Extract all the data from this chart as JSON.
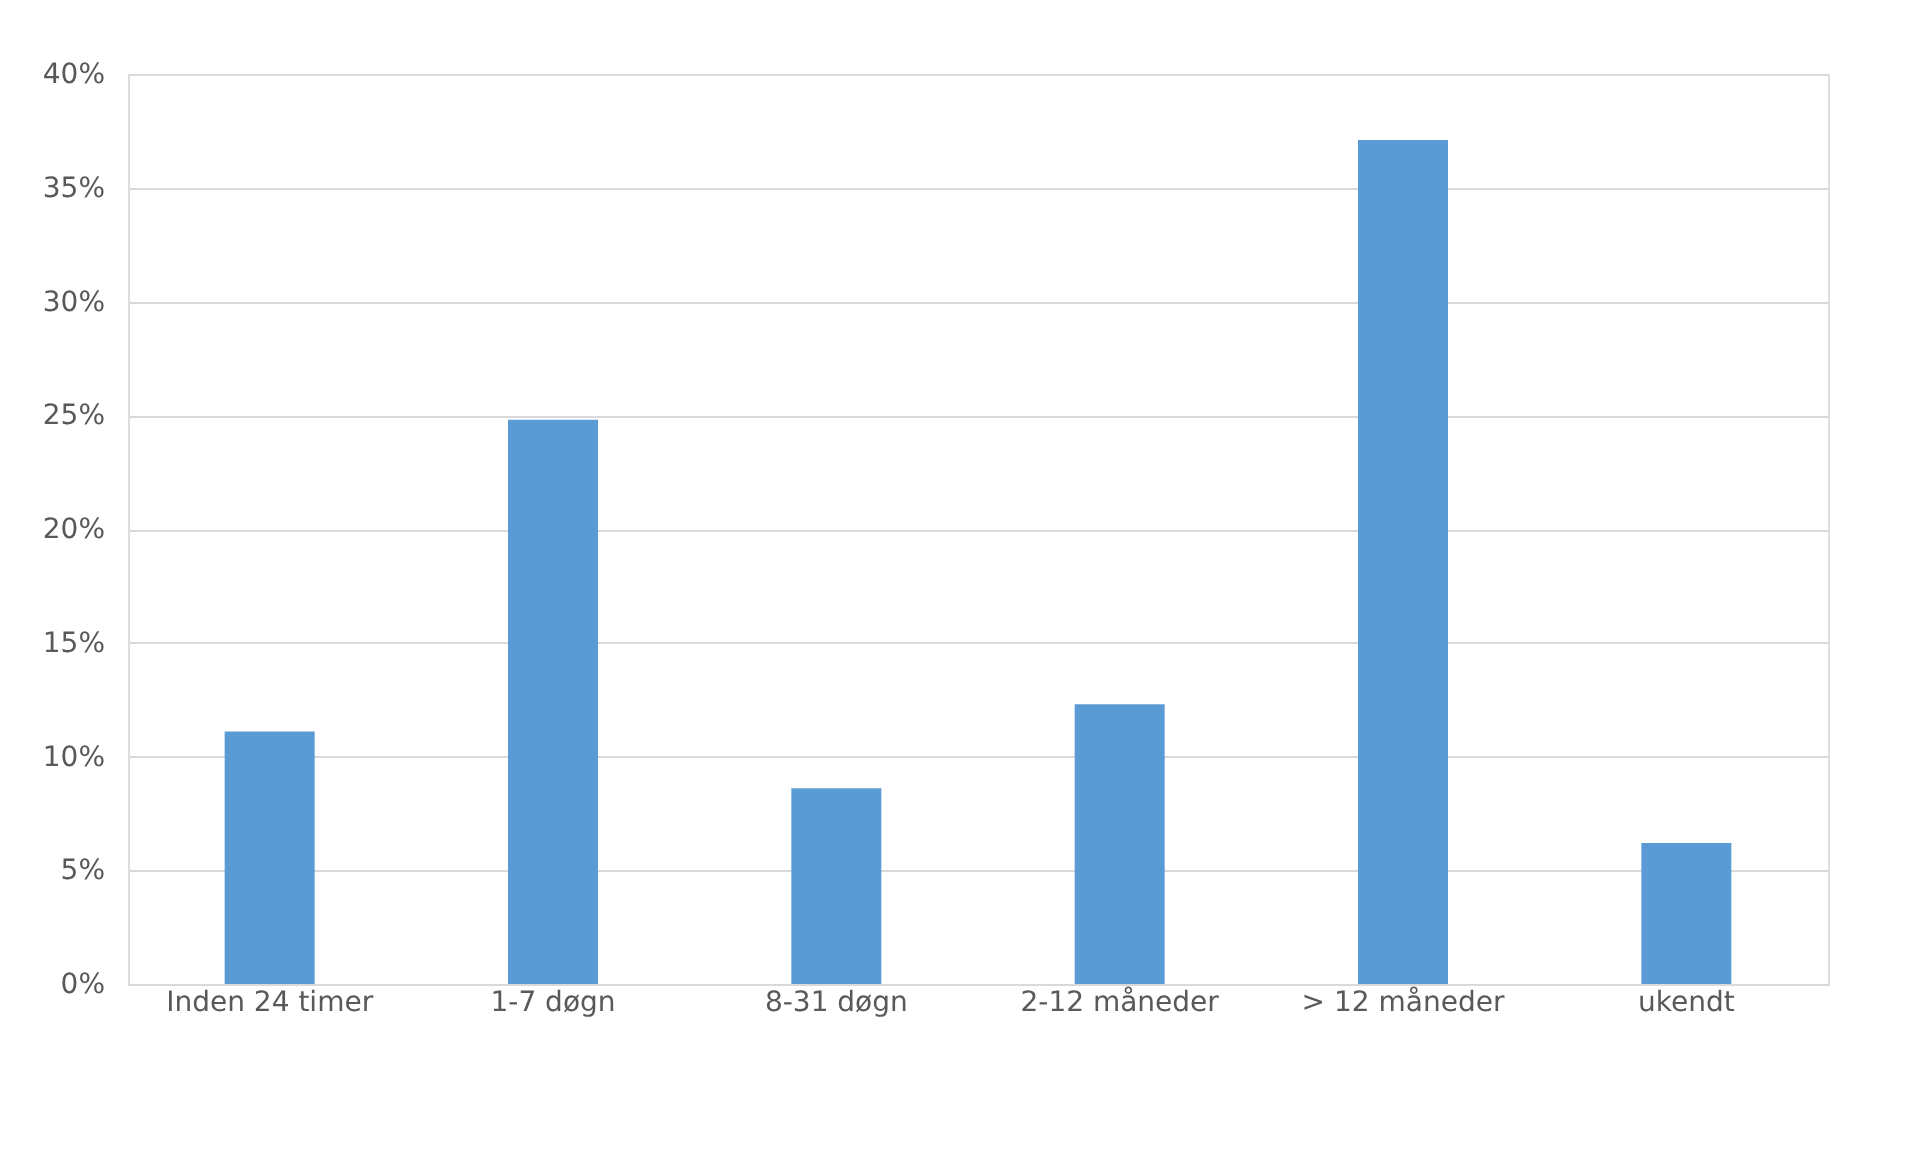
{
  "chart_data": {
    "type": "bar",
    "categories": [
      "Inden 24 timer",
      "1-7 døgn",
      "8-31 døgn",
      "2-12 måneder",
      "> 12 måneder",
      "ukendt"
    ],
    "values": [
      11.1,
      24.8,
      8.6,
      12.3,
      37.1,
      6.2
    ],
    "color": "#5b9bd5",
    "ylim": [
      0,
      40
    ],
    "yticks": [
      {
        "value": 0,
        "label": "0%"
      },
      {
        "value": 5,
        "label": "5%"
      },
      {
        "value": 10,
        "label": "10%"
      },
      {
        "value": 15,
        "label": "15%"
      },
      {
        "value": 20,
        "label": "20%"
      },
      {
        "value": 25,
        "label": "25%"
      },
      {
        "value": 30,
        "label": "30%"
      },
      {
        "value": 35,
        "label": "35%"
      },
      {
        "value": 40,
        "label": "40%"
      }
    ],
    "grid": "y"
  }
}
